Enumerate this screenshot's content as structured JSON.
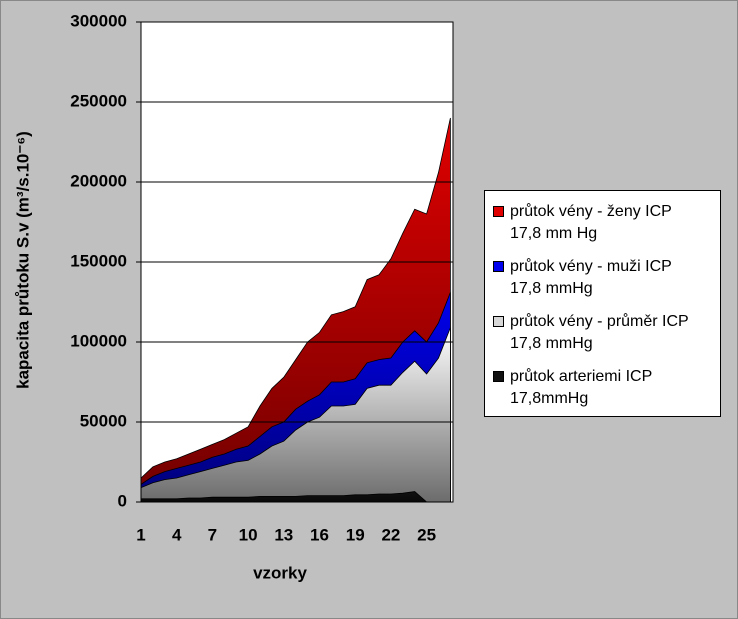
{
  "chart_data": {
    "type": "area",
    "y_label": "kapacita průtoku S.v (m³/s.10⁻⁶)",
    "x_label": "vzorky",
    "categories": [
      1,
      null,
      null,
      4,
      null,
      null,
      7,
      null,
      null,
      10,
      null,
      null,
      13,
      null,
      null,
      16,
      null,
      null,
      19,
      null,
      null,
      22,
      null,
      null,
      25,
      null,
      null
    ],
    "series": [
      {
        "name": "průtok vény - ženy ICP\n17,8 mm Hg",
        "color": "#e00000",
        "values": [
          15000,
          22000,
          25000,
          27000,
          30000,
          33000,
          36000,
          39000,
          43000,
          47000,
          60000,
          71000,
          78000,
          89000,
          100000,
          106000,
          117000,
          119000,
          122000,
          139000,
          142000,
          152000,
          168000,
          183000,
          180000,
          206000,
          240000
        ]
      },
      {
        "name": "průtok vény - muži ICP\n17,8 mmHg",
        "color": "#0000ee",
        "values": [
          11000,
          16000,
          19000,
          21000,
          23000,
          25000,
          28000,
          30000,
          33000,
          35000,
          41000,
          47000,
          50000,
          58000,
          63000,
          67000,
          75000,
          75000,
          77000,
          87000,
          89000,
          90000,
          100000,
          107000,
          100000,
          112000,
          131000
        ]
      },
      {
        "name": "průtok vény - průměr ICP\n17,8 mmHg",
        "color": "#d8d8d8",
        "values": [
          9000,
          12000,
          14000,
          15000,
          17000,
          19000,
          21000,
          23000,
          25000,
          26000,
          30000,
          35000,
          38000,
          45000,
          50000,
          53000,
          60000,
          60000,
          61000,
          71000,
          73000,
          73000,
          81000,
          88000,
          80000,
          90000,
          109000
        ]
      },
      {
        "name": "průtok arteriemi ICP\n17,8mmHg",
        "color": "#111111",
        "values": [
          2000,
          2000,
          2000,
          2000,
          2500,
          2500,
          3000,
          3000,
          3000,
          3000,
          3500,
          3500,
          3500,
          3500,
          4000,
          4000,
          4000,
          4000,
          4500,
          4500,
          5000,
          5000,
          5500,
          6500,
          0,
          null,
          null
        ]
      }
    ],
    "ylim": [
      0,
      300000
    ],
    "yticks": [
      0,
      50000,
      100000,
      150000,
      200000,
      250000,
      300000
    ],
    "grid": true,
    "legend": "right"
  }
}
